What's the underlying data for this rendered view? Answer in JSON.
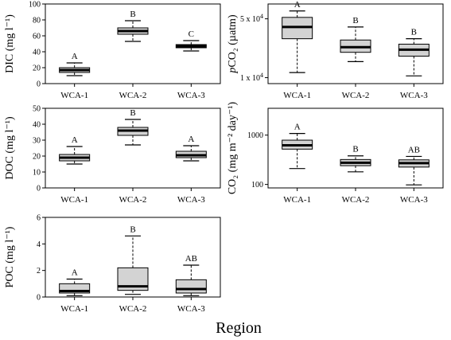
{
  "figure": {
    "xlabel": "Region",
    "styles": {
      "box_fill": "#d3d3d3",
      "line": "#000000"
    }
  },
  "chart_data": [
    {
      "id": "dic",
      "type": "boxplot",
      "ylabel": "DIC (mg l⁻¹)",
      "ylim": [
        0,
        100
      ],
      "yscale": "linear",
      "yticks": [
        0,
        20,
        40,
        60,
        80,
        100
      ],
      "ytick_labels": [
        "0",
        "20",
        "40",
        "60",
        "80",
        "100"
      ],
      "categories": [
        "WCA-1",
        "WCA-2",
        "WCA-3"
      ],
      "boxes": [
        {
          "whislo": 10,
          "q1": 14,
          "med": 17,
          "q3": 20,
          "whishi": 26
        },
        {
          "whislo": 53,
          "q1": 62,
          "med": 66,
          "q3": 70,
          "whishi": 79
        },
        {
          "whislo": 41,
          "q1": 45,
          "med": 47,
          "q3": 49,
          "whishi": 54
        }
      ],
      "groups": [
        "A",
        "B",
        "C"
      ]
    },
    {
      "id": "pco2",
      "type": "boxplot",
      "ylabel": "pCO₂ (µatm)",
      "ylim": [
        8500,
        75000
      ],
      "yscale": "log",
      "yticks": [
        10000,
        50000
      ],
      "ytick_labels": [
        "1 x 10⁴",
        "5 x 10⁴"
      ],
      "categories": [
        "WCA-1",
        "WCA-2",
        "WCA-3"
      ],
      "boxes": [
        {
          "whislo": 11500,
          "q1": 29000,
          "med": 40000,
          "q3": 52000,
          "whishi": 62000
        },
        {
          "whislo": 15500,
          "q1": 20000,
          "med": 23000,
          "q3": 28000,
          "whishi": 40000
        },
        {
          "whislo": 10500,
          "q1": 18000,
          "med": 21500,
          "q3": 25000,
          "whishi": 29000
        }
      ],
      "groups": [
        "A",
        "B",
        "B"
      ]
    },
    {
      "id": "doc",
      "type": "boxplot",
      "ylabel": "DOC (mg l⁻¹)",
      "ylim": [
        0,
        50
      ],
      "yscale": "linear",
      "yticks": [
        0,
        10,
        20,
        30,
        40,
        50
      ],
      "ytick_labels": [
        "0",
        "10",
        "20",
        "30",
        "40",
        "50"
      ],
      "categories": [
        "WCA-1",
        "WCA-2",
        "WCA-3"
      ],
      "boxes": [
        {
          "whislo": 15,
          "q1": 17,
          "med": 19,
          "q3": 21,
          "whishi": 26
        },
        {
          "whislo": 27,
          "q1": 33,
          "med": 36,
          "q3": 38,
          "whishi": 43
        },
        {
          "whislo": 17,
          "q1": 19,
          "med": 20.5,
          "q3": 23,
          "whishi": 26.5
        }
      ],
      "groups": [
        "A",
        "B",
        "A"
      ]
    },
    {
      "id": "co2flux",
      "type": "boxplot",
      "ylabel": "CO₂ (mg m⁻² day⁻¹)",
      "ylim": [
        85,
        3500
      ],
      "yscale": "log",
      "yticks": [
        100,
        1000
      ],
      "ytick_labels": [
        "100",
        "1000"
      ],
      "categories": [
        "WCA-1",
        "WCA-2",
        "WCA-3"
      ],
      "boxes": [
        {
          "whislo": 210,
          "q1": 520,
          "med": 620,
          "q3": 790,
          "whishi": 1080
        },
        {
          "whislo": 180,
          "q1": 240,
          "med": 275,
          "q3": 320,
          "whishi": 380
        },
        {
          "whislo": 98,
          "q1": 225,
          "med": 270,
          "q3": 315,
          "whishi": 370
        }
      ],
      "groups": [
        "A",
        "B",
        "AB"
      ]
    },
    {
      "id": "poc",
      "type": "boxplot",
      "ylabel": "POC (mg l⁻¹)",
      "ylim": [
        0,
        6
      ],
      "yscale": "linear",
      "yticks": [
        0,
        2,
        4,
        6
      ],
      "ytick_labels": [
        "0",
        "2",
        "4",
        "6"
      ],
      "categories": [
        "WCA-1",
        "WCA-2",
        "WCA-3"
      ],
      "boxes": [
        {
          "whislo": 0.1,
          "q1": 0.3,
          "med": 0.45,
          "q3": 1.0,
          "whishi": 1.35
        },
        {
          "whislo": 0.2,
          "q1": 0.5,
          "med": 0.8,
          "q3": 2.2,
          "whishi": 4.6
        },
        {
          "whislo": 0.1,
          "q1": 0.3,
          "med": 0.6,
          "q3": 1.3,
          "whishi": 2.4
        }
      ],
      "groups": [
        "A",
        "B",
        "AB"
      ]
    }
  ]
}
